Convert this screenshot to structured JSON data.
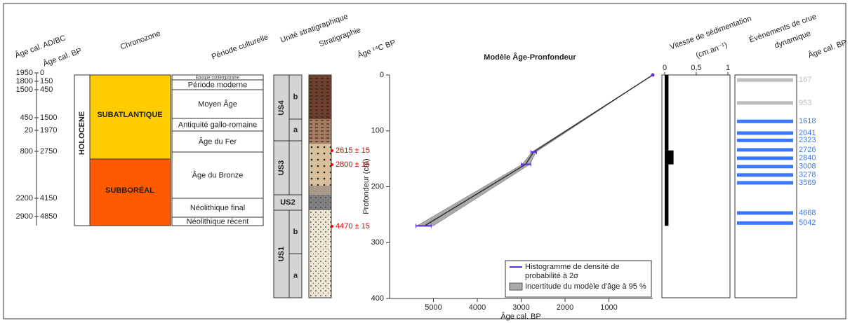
{
  "header": {
    "age_ad_bc": "Âge cal. AD/BC",
    "age_bp": "Âge cal. BP",
    "chronozone": "Chronozone",
    "periode": "Période culturelle",
    "unite": "Unité stratigraphique",
    "stratigraphie": "Stratigraphie",
    "age_14c": "Âge ¹⁴C BP"
  },
  "age_scale": [
    {
      "ad_bc": 1950,
      "bp": 0
    },
    {
      "ad_bc": 1800,
      "bp": 150
    },
    {
      "ad_bc": 1500,
      "bp": 450
    },
    {
      "ad_bc": 450,
      "bp": 1500
    },
    {
      "ad_bc": 20,
      "bp": 1970
    },
    {
      "ad_bc": 800,
      "bp": 2750
    },
    {
      "ad_bc": 2200,
      "bp": 4150
    },
    {
      "ad_bc": 2900,
      "bp": 4850
    }
  ],
  "epoch": "HOLOCENE",
  "chronozones": [
    "SUBATLANTIQUE",
    "SUBBORÉAL"
  ],
  "periods": [
    "Époque contemporaine",
    "Période moderne",
    "Moyen Âge",
    "Antiquité gallo-romaine",
    "Âge du Fer",
    "Âge du Bronze",
    "Néolithique final",
    "Néolithique récent"
  ],
  "units": [
    {
      "name": "US4",
      "subs": [
        "b",
        "a"
      ]
    },
    {
      "name": "US3"
    },
    {
      "name": "US2"
    },
    {
      "name": "US1",
      "subs": [
        "b",
        "a"
      ]
    }
  ],
  "dates_14c": [
    "2615 ± 15",
    "2800 ± 15",
    "4470 ± 15"
  ],
  "chart_data": [
    {
      "type": "line",
      "title": "Modèle Âge-Pronfondeur",
      "x_label": "Âge cal. BP",
      "y_label": "Profondeur (cm)",
      "xlim": [
        6000,
        0
      ],
      "xticks": [
        5000,
        4000,
        3000,
        2000,
        1000
      ],
      "ylim": [
        0,
        400
      ],
      "y_inverted": true,
      "yticks": [
        0,
        100,
        200,
        300,
        400
      ],
      "model": {
        "x": [
          0,
          2720,
          2900,
          5200
        ],
        "values": [
          0,
          138,
          160,
          270
        ],
        "color": "#333333"
      },
      "band": {
        "name": "Incertitude du modèle d'âge à 95 %",
        "color": "#aaaaaa",
        "values": [
          0,
          138,
          160,
          270
        ],
        "x_low": [
          0,
          2660,
          2800,
          5000
        ],
        "x_high": [
          0,
          2760,
          2980,
          5380
        ]
      },
      "histograms": {
        "name": "Histogramme de densité de probabilité à 2σ",
        "color": "#5a2de0",
        "values": [
          138,
          160,
          270
        ],
        "x_low": [
          2650,
          2780,
          5050
        ],
        "x_high": [
          2780,
          3000,
          5400
        ]
      },
      "legend": "bottom-right"
    },
    {
      "type": "histogram",
      "orientation": "horizontal",
      "title": "Vitesse de sédimentation",
      "unit_label": "(cm.an⁻¹)",
      "xlim": [
        0,
        1
      ],
      "xticks": [
        0,
        {
          "value": 0.5,
          "label": "0,5"
        },
        1
      ],
      "ylim": [
        0,
        400
      ],
      "bins": [
        0,
        135,
        160,
        270
      ],
      "values": [
        0.06,
        0.14,
        0.06
      ],
      "color": "#000000"
    },
    {
      "type": "event",
      "title": "Évènements de crue",
      "subtitle": "dynamique",
      "axis_label": "Âge cal. BP",
      "ylim": [
        0,
        400
      ],
      "values": [
        167,
        953,
        1618,
        2041,
        2323,
        2726,
        2840,
        3008,
        3278,
        3569,
        4668,
        5042
      ],
      "depths": [
        9,
        50,
        83,
        104,
        117,
        134,
        149,
        164,
        179,
        193,
        247,
        265
      ],
      "colors": [
        "#bdbdbd",
        "#bdbdbd",
        "#3a78ff",
        "#3a78ff",
        "#3a78ff",
        "#3a78ff",
        "#3a78ff",
        "#3a78ff",
        "#3a78ff",
        "#3a78ff",
        "#3a78ff",
        "#3a78ff"
      ]
    }
  ]
}
